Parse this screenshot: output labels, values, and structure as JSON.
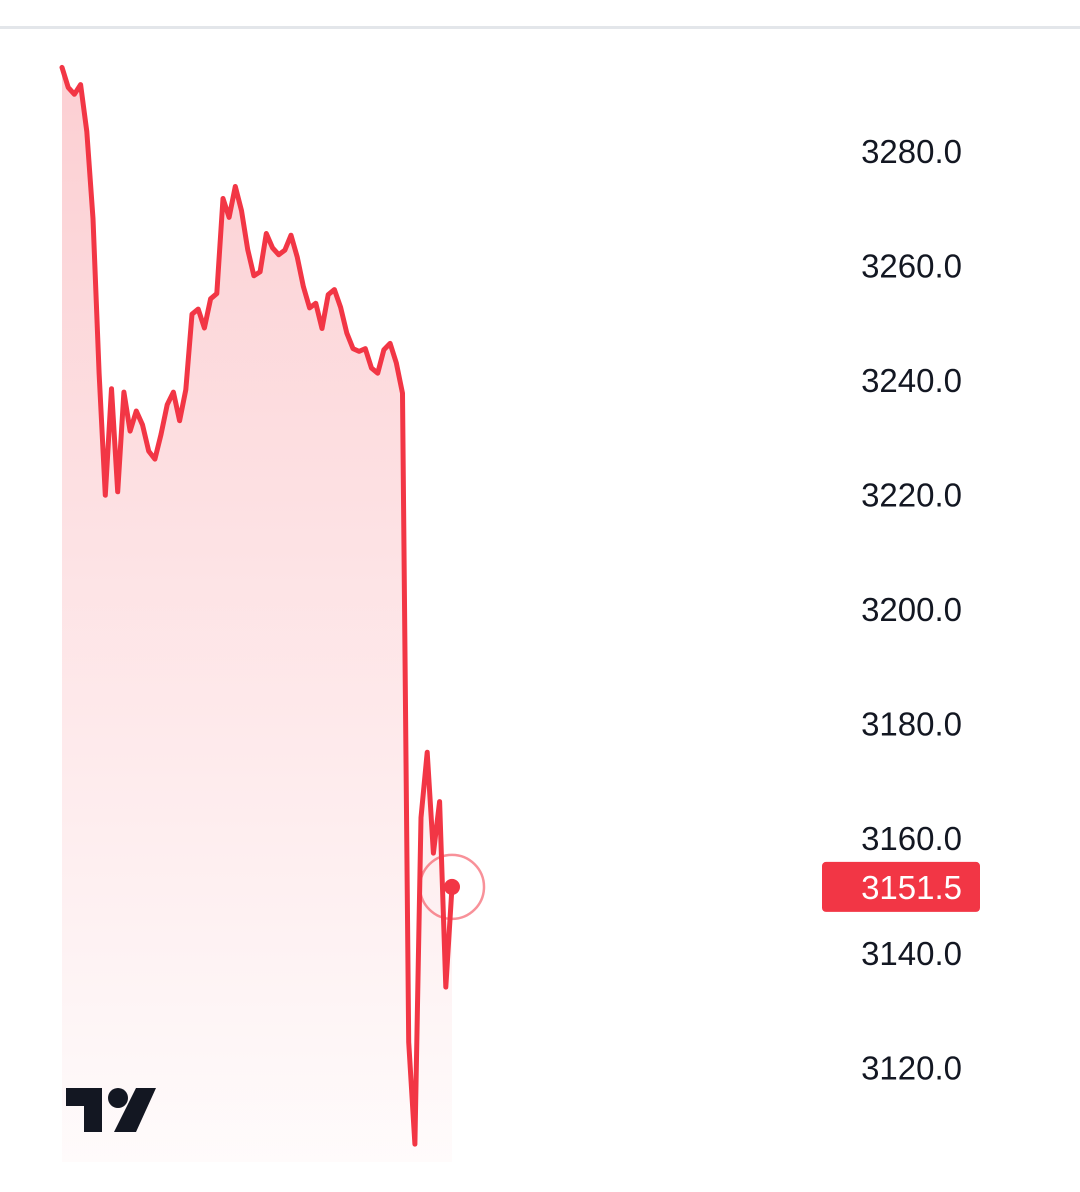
{
  "chart_data": {
    "type": "area",
    "title": "",
    "xlabel": "",
    "ylabel": "",
    "ylim": [
      3105,
      3300
    ],
    "grid": false,
    "y_ticks": [
      "3280.0",
      "3260.0",
      "3240.0",
      "3220.0",
      "3200.0",
      "3180.0",
      "3160.0",
      "3140.0",
      "3120.0"
    ],
    "y_tick_values": [
      3280,
      3260,
      3240,
      3220,
      3200,
      3180,
      3160,
      3140,
      3120
    ],
    "series": [
      {
        "color": "#f23645",
        "fill_color": "#f23645",
        "y": [
          3294.6,
          3291.1,
          3289.9,
          3291.6,
          3283.4,
          3268.2,
          3241.2,
          3219.9,
          3238.5,
          3220.5,
          3237.9,
          3231.1,
          3234.6,
          3232.2,
          3227.6,
          3226.2,
          3230.5,
          3235.7,
          3237.9,
          3232.9,
          3238.3,
          3251.5,
          3252.4,
          3249.1,
          3254.2,
          3255.1,
          3271.7,
          3268.4,
          3273.8,
          3269.6,
          3262.8,
          3258.2,
          3258.9,
          3265.6,
          3263.1,
          3261.9,
          3262.7,
          3265.3,
          3261.5,
          3256.3,
          3252.6,
          3253.4,
          3249.0,
          3254.9,
          3255.8,
          3252.7,
          3248.2,
          3245.5,
          3245.0,
          3245.5,
          3242.1,
          3241.2,
          3245.3,
          3246.4,
          3243.0,
          3237.7,
          3124.4,
          3106.6,
          3163.6,
          3175.0,
          3157.4,
          3166.4,
          3134.0,
          3151.5
        ]
      }
    ],
    "last_value": 3151.5,
    "last_value_label": "3151.5",
    "marker_color": "#f23645"
  },
  "logo": {
    "name": "tradingview-logo",
    "color": "#131722"
  }
}
